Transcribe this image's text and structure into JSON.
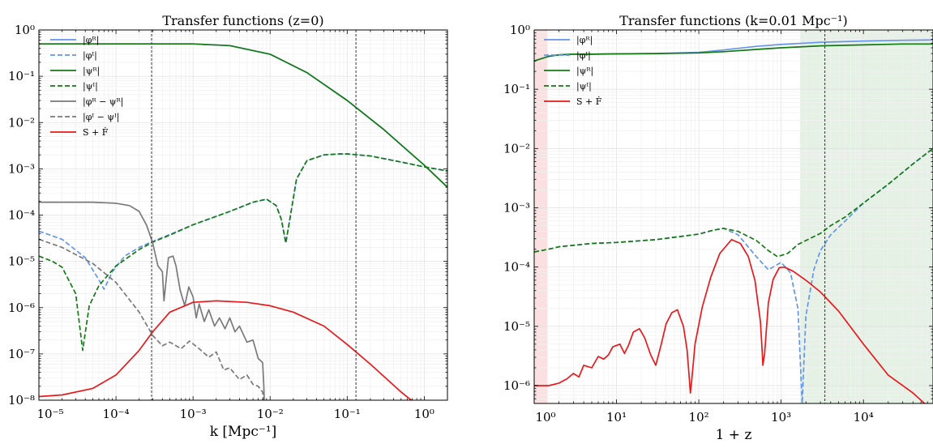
{
  "chart_data": [
    {
      "type": "line",
      "title": "Transfer functions (z=0)",
      "xlabel": "k [Mpc⁻¹]",
      "ylabel": "",
      "xscale": "log",
      "yscale": "log",
      "xlim": [
        1e-05,
        2
      ],
      "ylim": [
        1e-08,
        1
      ],
      "grid": true,
      "legend_position": "upper-left",
      "x_ticks": [
        {
          "value": 1e-05,
          "label": "10⁻⁵"
        },
        {
          "value": 0.0001,
          "label": "10⁻⁴"
        },
        {
          "value": 0.001,
          "label": "10⁻³"
        },
        {
          "value": 0.01,
          "label": "10⁻²"
        },
        {
          "value": 0.1,
          "label": "10⁻¹"
        },
        {
          "value": 1,
          "label": "10⁰"
        }
      ],
      "y_ticks": [
        {
          "value": 1e-08,
          "label": "10⁻⁸"
        },
        {
          "value": 1e-07,
          "label": "10⁻⁷"
        },
        {
          "value": 1e-06,
          "label": "10⁻⁶"
        },
        {
          "value": 1e-05,
          "label": "10⁻⁵"
        },
        {
          "value": 0.0001,
          "label": "10⁻⁴"
        },
        {
          "value": 0.001,
          "label": "10⁻³"
        },
        {
          "value": 0.01,
          "label": "10⁻²"
        },
        {
          "value": 0.1,
          "label": "10⁻¹"
        },
        {
          "value": 1,
          "label": "10⁰"
        }
      ],
      "vlines": [
        0.00029,
        0.13
      ],
      "shaded_regions": [],
      "series": [
        {
          "name": "|φᴿ|",
          "color": "#6495ed",
          "dash": "solid",
          "x": [
            1e-05,
            0.0001,
            0.001,
            0.003,
            0.01,
            0.03,
            0.1,
            0.3,
            1,
            2
          ],
          "y": [
            0.5,
            0.5,
            0.5,
            0.46,
            0.3,
            0.12,
            0.03,
            0.007,
            0.0012,
            0.0004
          ]
        },
        {
          "name": "|φᴵ|",
          "color": "#6495ed",
          "dash": "dashed",
          "x": [
            1e-05,
            2e-05,
            4e-05,
            6e-05,
            7e-05,
            9e-05,
            0.00013,
            0.0002,
            0.0003,
            0.0005,
            0.001,
            0.003,
            0.006,
            0.009,
            0.012,
            0.014,
            0.016,
            0.018,
            0.022,
            0.03,
            0.05,
            0.08,
            0.1,
            0.2,
            0.5,
            1,
            2
          ],
          "y": [
            4.5e-05,
            3e-05,
            1.2e-05,
            4e-06,
            2.5e-06,
            6e-06,
            1.3e-05,
            2e-05,
            2.7e-05,
            3.8e-05,
            6.2e-05,
            0.00012,
            0.00019,
            0.00022,
            0.00016,
            8e-05,
            2.5e-05,
            8e-05,
            0.0006,
            0.0015,
            0.002,
            0.0021,
            0.0021,
            0.0019,
            0.0014,
            0.0011,
            0.0009
          ]
        },
        {
          "name": "|ψᴿ|",
          "color": "#137a13",
          "dash": "solid",
          "x": [
            1e-05,
            0.0001,
            0.001,
            0.003,
            0.01,
            0.03,
            0.1,
            0.3,
            1,
            2
          ],
          "y": [
            0.5,
            0.5,
            0.5,
            0.46,
            0.3,
            0.12,
            0.03,
            0.007,
            0.0012,
            0.0004
          ]
        },
        {
          "name": "|ψᴵ|",
          "color": "#137a13",
          "dash": "dashed",
          "x": [
            1e-05,
            1.5e-05,
            2e-05,
            3e-05,
            3.7e-05,
            4.5e-05,
            6e-05,
            0.0001,
            0.0002,
            0.0003,
            0.0005,
            0.001,
            0.003,
            0.006,
            0.009,
            0.012,
            0.014,
            0.016,
            0.018,
            0.022,
            0.03,
            0.05,
            0.08,
            0.1,
            0.2,
            0.5,
            1,
            2
          ],
          "y": [
            1.3e-05,
            1e-05,
            7.5e-06,
            2e-06,
            1.2e-07,
            1.1e-06,
            3e-06,
            8e-06,
            1.8e-05,
            2.6e-05,
            3.7e-05,
            6.2e-05,
            0.00012,
            0.00019,
            0.00022,
            0.00016,
            8e-05,
            2.5e-05,
            8e-05,
            0.0006,
            0.0015,
            0.002,
            0.0021,
            0.0021,
            0.0019,
            0.0014,
            0.0011,
            0.0009
          ]
        },
        {
          "name": "|φᴿ − ψᴿ|",
          "color": "#7a7a7a",
          "dash": "solid",
          "x": [
            1e-05,
            5e-05,
            0.0001,
            0.00015,
            0.0002,
            0.00025,
            0.0003,
            0.00035,
            0.0004,
            0.00042,
            0.00048,
            0.00055,
            0.0006,
            0.00068,
            0.00078,
            0.00088,
            0.001,
            0.0011,
            0.0012,
            0.0014,
            0.0016,
            0.0019,
            0.0022,
            0.0026,
            0.003,
            0.0035,
            0.004,
            0.005,
            0.006,
            0.007,
            0.008,
            0.0083,
            0.0085
          ],
          "y": [
            0.00019,
            0.00019,
            0.00018,
            0.00016,
            0.00012,
            6e-05,
            2.5e-05,
            8e-06,
            6e-06,
            1.4e-06,
            1.2e-05,
            1.3e-05,
            8e-06,
            2.4e-06,
            1.1e-06,
            2.8e-06,
            1.7e-06,
            6e-07,
            1.2e-06,
            5e-07,
            9e-07,
            4e-07,
            6e-07,
            3.5e-07,
            6e-07,
            3e-07,
            4e-07,
            1.8e-07,
            2e-07,
            8e-08,
            6.5e-08,
            2e-08,
            5e-09
          ]
        },
        {
          "name": "|φᴵ − ψᴵ|",
          "color": "#7a7a7a",
          "dash": "dashed",
          "x": [
            1e-05,
            2e-05,
            5e-05,
            0.0001,
            0.0002,
            0.0003,
            0.0004,
            0.0005,
            0.0007,
            0.0009,
            0.0012,
            0.0016,
            0.002,
            0.0025,
            0.003,
            0.004,
            0.005,
            0.006,
            0.007,
            0.008,
            0.0085
          ],
          "y": [
            3e-05,
            2e-05,
            9e-06,
            3.5e-06,
            8e-07,
            2.5e-07,
            1.5e-07,
            1.8e-07,
            1.3e-07,
            1.9e-07,
            1.3e-07,
            8.5e-08,
            1.1e-07,
            4.5e-08,
            5e-08,
            2.8e-08,
            3.5e-08,
            2.2e-08,
            2e-08,
            1.5e-08,
            5e-09
          ]
        },
        {
          "name": "S + Ḟ",
          "color": "#e8191c",
          "dash": "solid",
          "x": [
            1e-05,
            2e-05,
            5e-05,
            0.0001,
            0.0002,
            0.0003,
            0.0005,
            0.001,
            0.002,
            0.005,
            0.01,
            0.02,
            0.05,
            0.1,
            0.2,
            0.5,
            1
          ],
          "y": [
            1.2e-08,
            1.3e-08,
            1.8e-08,
            3.5e-08,
            1.2e-07,
            3e-07,
            8e-07,
            1.3e-06,
            1.4e-06,
            1.3e-06,
            1.1e-06,
            8e-07,
            4e-07,
            1.6e-07,
            6e-08,
            1.5e-08,
            6e-09
          ]
        }
      ]
    },
    {
      "type": "line",
      "title": "Transfer functions (k=0.01 Mpc⁻¹)",
      "xlabel": "1 + z",
      "ylabel": "",
      "xscale": "log",
      "yscale": "log",
      "xlim": [
        1,
        70000
      ],
      "ylim": [
        5e-07,
        1
      ],
      "grid": true,
      "legend_position": "upper-left",
      "x_ticks": [
        {
          "value": 1,
          "label": "10⁰"
        },
        {
          "value": 10,
          "label": "10¹"
        },
        {
          "value": 100,
          "label": "10²"
        },
        {
          "value": 1000,
          "label": "10³"
        },
        {
          "value": 10000,
          "label": "10⁴"
        }
      ],
      "y_ticks": [
        {
          "value": 1e-06,
          "label": "10⁻⁶"
        },
        {
          "value": 1e-05,
          "label": "10⁻⁵"
        },
        {
          "value": 0.0001,
          "label": "10⁻⁴"
        },
        {
          "value": 0.001,
          "label": "10⁻³"
        },
        {
          "value": 0.01,
          "label": "10⁻²"
        },
        {
          "value": 0.1,
          "label": "10⁻¹"
        },
        {
          "value": 1,
          "label": "10⁰"
        }
      ],
      "vlines": [
        3400
      ],
      "shaded_regions": [
        {
          "x0": 1,
          "x1": 1.45,
          "color": "#f5c6c6"
        },
        {
          "x0": 1700,
          "x1": 70000,
          "color": "#cfe6cf"
        }
      ],
      "series": [
        {
          "name": "|φᴿ|",
          "color": "#6495ed",
          "dash": "solid",
          "x": [
            1,
            1.5,
            2,
            3,
            5,
            10,
            30,
            100,
            200,
            500,
            1000,
            3000,
            10000,
            30000,
            70000
          ],
          "y": [
            0.3,
            0.36,
            0.38,
            0.39,
            0.39,
            0.395,
            0.4,
            0.42,
            0.46,
            0.53,
            0.57,
            0.62,
            0.65,
            0.67,
            0.68
          ]
        },
        {
          "name": "|φᴵ|",
          "color": "#6495ed",
          "dash": "dashed",
          "x": [
            1,
            1.5,
            2,
            5,
            10,
            30,
            100,
            150,
            200,
            300,
            500,
            700,
            1000,
            1300,
            1600,
            1800,
            2000,
            2500,
            3000,
            4000,
            6000,
            10000,
            20000,
            40000,
            70000
          ],
          "y": [
            0.00018,
            0.0002,
            0.00022,
            0.00025,
            0.00026,
            0.00029,
            0.00036,
            0.00042,
            0.00045,
            0.00035,
            0.00015,
            9e-05,
            0.00012,
            8e-05,
            2e-05,
            5e-07,
            1.5e-05,
            9e-05,
            0.00019,
            0.00035,
            0.0006,
            0.0012,
            0.0025,
            0.0055,
            0.01
          ]
        },
        {
          "name": "|ψᴿ|",
          "color": "#137a13",
          "dash": "solid",
          "x": [
            1,
            1.5,
            2,
            3,
            5,
            10,
            30,
            100,
            200,
            500,
            1000,
            3000,
            10000,
            30000,
            70000
          ],
          "y": [
            0.3,
            0.36,
            0.38,
            0.39,
            0.39,
            0.395,
            0.4,
            0.41,
            0.43,
            0.47,
            0.5,
            0.54,
            0.56,
            0.58,
            0.58
          ]
        },
        {
          "name": "|ψᴵ|",
          "color": "#137a13",
          "dash": "dashed",
          "x": [
            1,
            1.5,
            2,
            5,
            10,
            30,
            100,
            150,
            200,
            300,
            500,
            700,
            900,
            1200,
            1600,
            2000,
            3000,
            4000,
            6000,
            10000,
            20000,
            40000,
            70000
          ],
          "y": [
            0.00018,
            0.0002,
            0.00022,
            0.00025,
            0.00026,
            0.00029,
            0.00036,
            0.00042,
            0.00045,
            0.0004,
            0.00028,
            0.00019,
            0.00015,
            0.00017,
            0.00024,
            0.00028,
            0.00037,
            0.0005,
            0.0007,
            0.0012,
            0.0025,
            0.0055,
            0.01
          ]
        },
        {
          "name": "S + Ḟ",
          "color": "#e8191c",
          "dash": "solid",
          "x": [
            1,
            1.5,
            2,
            2.5,
            3,
            3.5,
            4,
            5,
            6,
            7,
            8,
            9,
            11,
            12.5,
            14,
            16,
            19,
            22,
            26,
            30,
            35,
            40,
            47,
            55,
            65,
            72,
            77,
            79,
            82,
            90,
            110,
            140,
            180,
            250,
            320,
            400,
            480,
            560,
            590,
            600,
            630,
            700,
            800,
            950,
            1100,
            1400,
            2000,
            3000,
            5000,
            10000,
            20000,
            40000,
            60000
          ],
          "y": [
            1e-06,
            1e-06,
            1.1e-06,
            1.3e-06,
            1.6e-06,
            1.4e-06,
            2.2e-06,
            2e-06,
            3.1e-06,
            2.8e-06,
            3.3e-06,
            4.5e-06,
            5e-06,
            3.5e-06,
            4.8e-06,
            8e-06,
            9.1e-06,
            6.4e-06,
            3.3e-06,
            2.2e-06,
            5e-06,
            1.1e-05,
            1.7e-05,
            1.9e-05,
            1e-05,
            4e-06,
            1.2e-06,
            7.5e-07,
            1.2e-06,
            5e-06,
            2.1e-05,
            6.8e-05,
            0.00017,
            0.00029,
            0.00025,
            0.00015,
            6e-05,
            1.2e-05,
            3.5e-06,
            2.2e-06,
            3.5e-06,
            2.5e-05,
            6.2e-05,
            9.8e-05,
            0.0001,
            8.5e-05,
            6e-05,
            3.8e-05,
            1.8e-05,
            5e-06,
            1.5e-06,
            7.5e-07,
            4.5e-07
          ]
        }
      ]
    }
  ]
}
